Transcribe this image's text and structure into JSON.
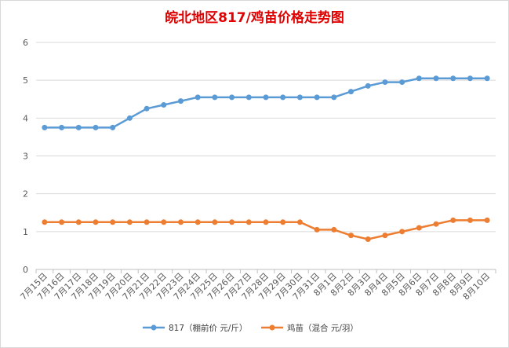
{
  "chart_data": {
    "type": "line",
    "title": "皖北地区817/鸡苗价格走势图",
    "categories": [
      "7月15日",
      "7月16日",
      "7月17日",
      "7月18日",
      "7月19日",
      "7月20日",
      "7月21日",
      "7月22日",
      "7月23日",
      "7月24日",
      "7月25日",
      "7月26日",
      "7月27日",
      "7月28日",
      "7月29日",
      "7月30日",
      "7月31日",
      "8月1日",
      "8月2日",
      "8月3日",
      "8月4日",
      "8月5日",
      "8月6日",
      "8月7日",
      "8月8日",
      "8月9日",
      "8月10日"
    ],
    "series": [
      {
        "name": "817（棚前价 元/斤）",
        "color": "#5b9bd5",
        "values": [
          3.75,
          3.75,
          3.75,
          3.75,
          3.75,
          4.0,
          4.25,
          4.35,
          4.45,
          4.55,
          4.55,
          4.55,
          4.55,
          4.55,
          4.55,
          4.55,
          4.55,
          4.55,
          4.7,
          4.85,
          4.95,
          4.95,
          5.05,
          5.05,
          5.05,
          5.05,
          5.05
        ]
      },
      {
        "name": "鸡苗（混合 元/羽）",
        "color": "#ed7d31",
        "values": [
          1.25,
          1.25,
          1.25,
          1.25,
          1.25,
          1.25,
          1.25,
          1.25,
          1.25,
          1.25,
          1.25,
          1.25,
          1.25,
          1.25,
          1.25,
          1.25,
          1.05,
          1.05,
          0.9,
          0.8,
          0.9,
          1.0,
          1.1,
          1.2,
          1.3,
          1.3,
          1.3
        ]
      }
    ],
    "yticks": [
      0,
      1,
      2,
      3,
      4,
      5,
      6
    ],
    "ylim": [
      0,
      6
    ],
    "grid": true,
    "legend_position": "bottom"
  }
}
